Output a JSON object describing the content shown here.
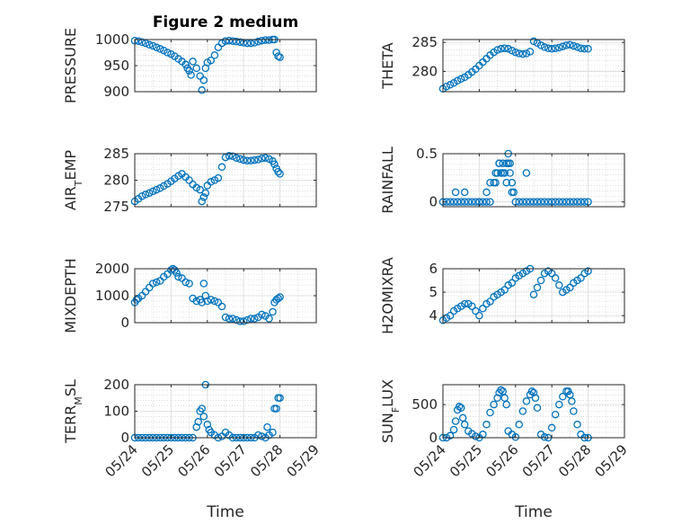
{
  "figure": {
    "title": "Figure 2 medium",
    "marker_color": "#0072bd",
    "axis_color": "#262626",
    "grid": true,
    "minor_grid": true
  },
  "chart_data": [
    {
      "type": "scatter",
      "ylabel": "PRESSURE",
      "ylim": [
        900,
        1000
      ],
      "yticks": [
        900,
        950,
        1000
      ],
      "xlim": [
        "05/24",
        "05/29"
      ],
      "series": [
        {
          "x": [
            24.0,
            24.1,
            24.2,
            24.3,
            24.4,
            24.5,
            24.6,
            24.7,
            24.8,
            24.9,
            25.0,
            25.1,
            25.2,
            25.3,
            25.4,
            25.45,
            25.5,
            25.55,
            25.6,
            25.7,
            25.8,
            25.85,
            25.9,
            25.95,
            26.0,
            26.1,
            26.2,
            26.3,
            26.4,
            26.5,
            26.6,
            26.7,
            26.8,
            26.9,
            27.0,
            27.1,
            27.2,
            27.3,
            27.4,
            27.5,
            27.6,
            27.7,
            27.8,
            27.85,
            27.9,
            27.95,
            28.0
          ],
          "y": [
            998,
            997,
            995,
            993,
            990,
            988,
            985,
            982,
            979,
            975,
            972,
            968,
            963,
            958,
            952,
            945,
            940,
            932,
            958,
            945,
            930,
            903,
            922,
            945,
            956,
            960,
            970,
            985,
            993,
            997,
            998,
            997,
            996,
            995,
            994,
            993,
            993,
            994,
            996,
            998,
            999,
            999,
            1000,
            1000,
            975,
            968,
            966
          ]
        }
      ]
    },
    {
      "type": "scatter",
      "ylabel": "THETA",
      "ylim": [
        276.5,
        285.5
      ],
      "yticks": [
        280,
        285
      ],
      "xlim": [
        "05/24",
        "05/29"
      ],
      "series": [
        {
          "x": [
            24.0,
            24.1,
            24.2,
            24.3,
            24.4,
            24.5,
            24.6,
            24.7,
            24.8,
            24.9,
            25.0,
            25.1,
            25.2,
            25.3,
            25.4,
            25.5,
            25.6,
            25.7,
            25.8,
            25.9,
            26.0,
            26.1,
            26.2,
            26.3,
            26.4,
            26.5,
            26.6,
            26.7,
            26.8,
            26.9,
            27.0,
            27.1,
            27.2,
            27.3,
            27.4,
            27.5,
            27.6,
            27.7,
            27.8,
            27.9,
            28.0
          ],
          "y": [
            277,
            277.4,
            277.7,
            278,
            278.4,
            278.7,
            279,
            279.4,
            279.9,
            280.4,
            281,
            281.6,
            282.2,
            282.8,
            283.3,
            283.7,
            283.9,
            284,
            283.9,
            283.6,
            283.3,
            283.1,
            283,
            283.1,
            283.4,
            285.2,
            284.9,
            284.5,
            284.2,
            284,
            283.9,
            284,
            284.1,
            284.3,
            284.5,
            284.6,
            284.4,
            284.2,
            284,
            283.9,
            283.9
          ]
        }
      ]
    },
    {
      "type": "scatter",
      "ylabel": "AIR_TEMP",
      "ylim": [
        275,
        285
      ],
      "yticks": [
        275,
        280,
        285
      ],
      "xlim": [
        "05/24",
        "05/29"
      ],
      "series": [
        {
          "x": [
            24.0,
            24.1,
            24.2,
            24.3,
            24.4,
            24.5,
            24.6,
            24.7,
            24.8,
            24.9,
            25.0,
            25.1,
            25.2,
            25.3,
            25.4,
            25.5,
            25.6,
            25.7,
            25.8,
            25.85,
            25.9,
            25.95,
            26.0,
            26.1,
            26.2,
            26.3,
            26.4,
            26.5,
            26.6,
            26.7,
            26.8,
            26.9,
            27.0,
            27.1,
            27.2,
            27.3,
            27.4,
            27.5,
            27.6,
            27.7,
            27.8,
            27.85,
            27.9,
            27.95,
            28.0
          ],
          "y": [
            276,
            276.5,
            277,
            277.3,
            277.6,
            277.9,
            278.2,
            278.5,
            278.9,
            279.3,
            279.8,
            280.3,
            280.8,
            281.2,
            280.6,
            280,
            279.2,
            278.6,
            278.2,
            276,
            276.8,
            277.6,
            279,
            279.7,
            280,
            280.4,
            282.5,
            284.3,
            284.6,
            284.5,
            284.2,
            284,
            283.8,
            283.7,
            283.7,
            283.8,
            283.9,
            284.1,
            284.2,
            284,
            283.6,
            283,
            282.2,
            281.6,
            281.2
          ]
        }
      ]
    },
    {
      "type": "scatter",
      "ylabel": "RAINFALL",
      "ylim": [
        -0.05,
        0.5
      ],
      "yticks": [
        0,
        0.5
      ],
      "xlim": [
        "05/24",
        "05/29"
      ],
      "series": [
        {
          "x": [
            24.0,
            24.1,
            24.2,
            24.3,
            24.4,
            24.5,
            24.6,
            24.7,
            24.8,
            24.9,
            25.0,
            25.1,
            25.2,
            25.3,
            25.4,
            25.45,
            25.5,
            25.55,
            25.6,
            25.65,
            25.7,
            25.75,
            25.8,
            25.85,
            25.9,
            25.95,
            26.0,
            26.1,
            26.2,
            26.3,
            26.4,
            26.5,
            26.6,
            26.7,
            26.8,
            26.9,
            27.0,
            27.1,
            27.2,
            27.3,
            27.4,
            27.5,
            27.6,
            27.7,
            27.8,
            27.9,
            28.0,
            24.35,
            24.6,
            25.0,
            25.2,
            25.3,
            25.45,
            25.55,
            25.65,
            25.75,
            25.8,
            25.85,
            25.9,
            26.3
          ],
          "y": [
            0,
            0,
            0,
            0,
            0,
            0,
            0,
            0,
            0,
            0,
            0,
            0,
            0,
            0,
            0.2,
            0.2,
            0.3,
            0.4,
            0.3,
            0.4,
            0.3,
            0.4,
            0.5,
            0.3,
            0.2,
            0.1,
            0,
            0,
            0,
            0,
            0,
            0,
            0,
            0,
            0,
            0,
            0,
            0,
            0,
            0,
            0,
            0,
            0,
            0,
            0,
            0,
            0,
            0.1,
            0.1,
            0,
            0.1,
            0.2,
            0.3,
            0.4,
            0.3,
            0.2,
            0.4,
            0.4,
            0.1,
            0.3
          ]
        }
      ]
    },
    {
      "type": "scatter",
      "ylabel": "MIXDEPTH",
      "ylim": [
        0,
        2000
      ],
      "yticks": [
        0,
        1000,
        2000
      ],
      "xlim": [
        "05/24",
        "05/29"
      ],
      "series": [
        {
          "x": [
            24.0,
            24.05,
            24.1,
            24.2,
            24.3,
            24.4,
            24.5,
            24.6,
            24.7,
            24.8,
            24.9,
            25.0,
            25.05,
            25.1,
            25.15,
            25.2,
            25.3,
            25.4,
            25.5,
            25.6,
            25.7,
            25.8,
            25.85,
            25.9,
            25.95,
            26.0,
            26.1,
            26.2,
            26.3,
            26.4,
            26.5,
            26.6,
            26.7,
            26.8,
            26.9,
            27.0,
            27.1,
            27.2,
            27.3,
            27.4,
            27.5,
            27.6,
            27.7,
            27.8,
            27.85,
            27.9,
            27.95,
            28.0
          ],
          "y": [
            750,
            850,
            900,
            1000,
            1150,
            1300,
            1450,
            1500,
            1550,
            1700,
            1800,
            1950,
            2000,
            1950,
            1850,
            1700,
            1650,
            1500,
            1450,
            900,
            800,
            850,
            750,
            1450,
            1000,
            800,
            850,
            800,
            750,
            600,
            200,
            150,
            150,
            100,
            50,
            50,
            100,
            150,
            150,
            200,
            300,
            250,
            150,
            400,
            750,
            850,
            900,
            950
          ]
        }
      ]
    },
    {
      "type": "scatter",
      "ylabel": "H2OMIXRA",
      "ylim": [
        3.7,
        6
      ],
      "yticks": [
        4,
        5,
        6
      ],
      "xlim": [
        "05/24",
        "05/29"
      ],
      "series": [
        {
          "x": [
            24.0,
            24.1,
            24.2,
            24.3,
            24.4,
            24.5,
            24.6,
            24.7,
            24.8,
            24.9,
            25.0,
            25.1,
            25.2,
            25.3,
            25.4,
            25.5,
            25.6,
            25.7,
            25.8,
            25.9,
            26.0,
            26.1,
            26.2,
            26.3,
            26.4,
            26.5,
            26.6,
            26.7,
            26.8,
            26.9,
            27.0,
            27.1,
            27.2,
            27.3,
            27.4,
            27.5,
            27.6,
            27.7,
            27.8,
            27.9,
            28.0
          ],
          "y": [
            3.8,
            3.9,
            4,
            4.2,
            4.3,
            4.4,
            4.5,
            4.5,
            4.4,
            4.2,
            4,
            4.3,
            4.5,
            4.6,
            4.8,
            4.9,
            5,
            5.1,
            5.3,
            5.4,
            5.6,
            5.7,
            5.8,
            5.9,
            6,
            4.9,
            5.2,
            5.5,
            5.8,
            5.9,
            5.8,
            5.6,
            5.3,
            5,
            5.1,
            5.2,
            5.4,
            5.5,
            5.6,
            5.8,
            5.9
          ]
        }
      ]
    },
    {
      "type": "scatter",
      "ylabel": "TERR_MSL",
      "ylim": [
        0,
        200
      ],
      "yticks": [
        0,
        100,
        200
      ],
      "xlim": [
        "05/24",
        "05/29"
      ],
      "series": [
        {
          "x": [
            24.0,
            24.1,
            24.2,
            24.3,
            24.4,
            24.5,
            24.6,
            24.7,
            24.8,
            24.9,
            25.0,
            25.1,
            25.2,
            25.3,
            25.4,
            25.5,
            25.6,
            25.7,
            25.75,
            25.8,
            25.85,
            25.9,
            25.95,
            26.0,
            26.05,
            26.1,
            26.2,
            26.3,
            26.4,
            26.5,
            26.6,
            26.7,
            26.8,
            26.9,
            27.0,
            27.1,
            27.2,
            27.3,
            27.4,
            27.5,
            27.6,
            27.65,
            27.7,
            27.8,
            27.85,
            27.9,
            27.95,
            28.0
          ],
          "y": [
            0,
            0,
            0,
            0,
            0,
            0,
            0,
            0,
            0,
            0,
            0,
            0,
            0,
            0,
            0,
            0,
            0,
            40,
            60,
            100,
            110,
            80,
            200,
            50,
            30,
            20,
            10,
            0,
            5,
            20,
            10,
            0,
            0,
            0,
            0,
            0,
            0,
            0,
            10,
            5,
            0,
            40,
            10,
            20,
            110,
            110,
            150,
            150
          ]
        }
      ]
    },
    {
      "type": "scatter",
      "ylabel": "SUN_FLUX",
      "ylim": [
        0,
        800
      ],
      "yticks": [
        0,
        500
      ],
      "xlim": [
        "05/24",
        "05/29"
      ],
      "series": [
        {
          "x": [
            24.0,
            24.1,
            24.2,
            24.3,
            24.35,
            24.4,
            24.45,
            24.5,
            24.55,
            24.6,
            24.7,
            24.8,
            24.9,
            25.0,
            25.1,
            25.2,
            25.3,
            25.4,
            25.5,
            25.55,
            25.6,
            25.65,
            25.7,
            25.75,
            25.8,
            25.9,
            26.0,
            26.1,
            26.2,
            26.3,
            26.4,
            26.45,
            26.5,
            26.55,
            26.6,
            26.7,
            26.8,
            26.9,
            27.0,
            27.1,
            27.2,
            27.3,
            27.4,
            27.45,
            27.5,
            27.55,
            27.6,
            27.7,
            27.8,
            27.9,
            28.0
          ],
          "y": [
            0,
            0,
            30,
            120,
            250,
            420,
            470,
            450,
            300,
            200,
            100,
            60,
            20,
            0,
            50,
            200,
            380,
            500,
            600,
            680,
            720,
            700,
            600,
            500,
            100,
            50,
            10,
            200,
            400,
            550,
            650,
            700,
            680,
            600,
            450,
            50,
            10,
            0,
            150,
            350,
            500,
            620,
            700,
            700,
            650,
            550,
            400,
            200,
            50,
            0,
            0
          ]
        }
      ]
    }
  ],
  "x_axis": {
    "ticks": [
      "05/24",
      "05/25",
      "05/26",
      "05/27",
      "05/28",
      "05/29"
    ],
    "label": "Time"
  }
}
